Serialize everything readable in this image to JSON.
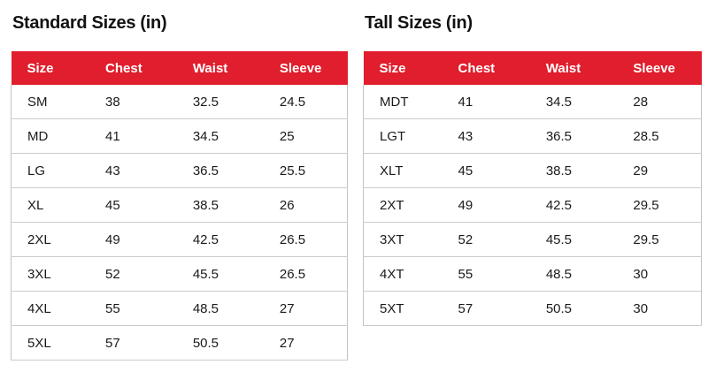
{
  "colors": {
    "header_bg": "#e01e2d",
    "header_text": "#ffffff",
    "body_text": "#1a1a1a",
    "divider": "#cbcbcb",
    "outer_border": "#c2c2c2",
    "title_text": "#121212",
    "page_bg": "#ffffff"
  },
  "standard": {
    "title": "Standard Sizes (in)",
    "columns": [
      "Size",
      "Chest",
      "Waist",
      "Sleeve"
    ],
    "rows": [
      [
        "SM",
        "38",
        "32.5",
        "24.5"
      ],
      [
        "MD",
        "41",
        "34.5",
        "25"
      ],
      [
        "LG",
        "43",
        "36.5",
        "25.5"
      ],
      [
        "XL",
        "45",
        "38.5",
        "26"
      ],
      [
        "2XL",
        "49",
        "42.5",
        "26.5"
      ],
      [
        "3XL",
        "52",
        "45.5",
        "26.5"
      ],
      [
        "4XL",
        "55",
        "48.5",
        "27"
      ],
      [
        "5XL",
        "57",
        "50.5",
        "27"
      ]
    ]
  },
  "tall": {
    "title": "Tall Sizes (in)",
    "columns": [
      "Size",
      "Chest",
      "Waist",
      "Sleeve"
    ],
    "rows": [
      [
        "MDT",
        "41",
        "34.5",
        "28"
      ],
      [
        "LGT",
        "43",
        "36.5",
        "28.5"
      ],
      [
        "XLT",
        "45",
        "38.5",
        "29"
      ],
      [
        "2XT",
        "49",
        "42.5",
        "29.5"
      ],
      [
        "3XT",
        "52",
        "45.5",
        "29.5"
      ],
      [
        "4XT",
        "55",
        "48.5",
        "30"
      ],
      [
        "5XT",
        "57",
        "50.5",
        "30"
      ]
    ]
  }
}
